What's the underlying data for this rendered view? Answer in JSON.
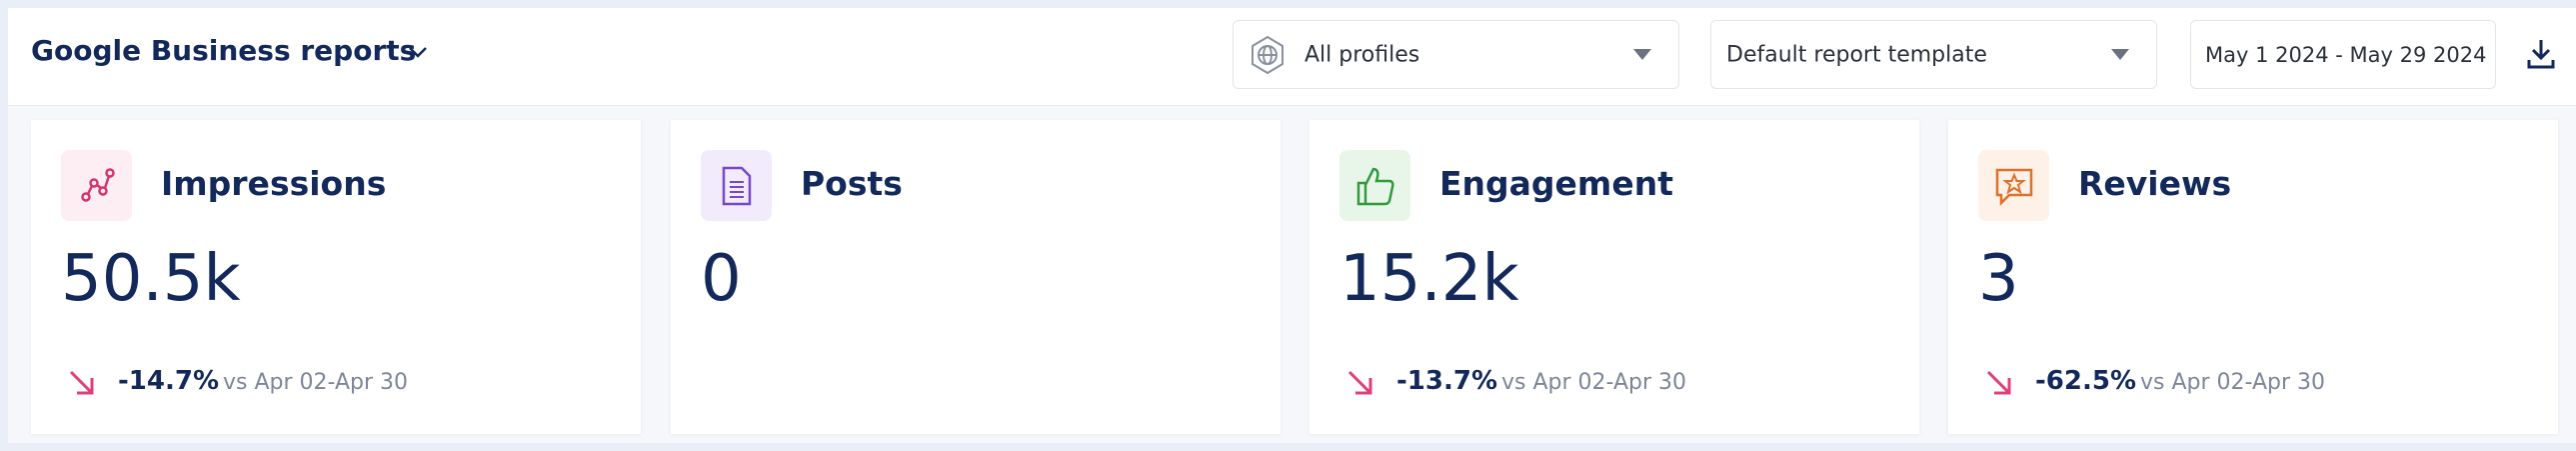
{
  "header": {
    "title": "Google Business reports"
  },
  "filters": {
    "profiles": "All profiles",
    "template": "Default report template",
    "date_range": "May 1 2024 - May 29 2024"
  },
  "cards": [
    {
      "title": "Impressions",
      "value": "50.5k",
      "change": "-14.7%",
      "comparison": "vs Apr 02-Apr 30"
    },
    {
      "title": "Posts",
      "value": "0"
    },
    {
      "title": "Engagement",
      "value": "15.2k",
      "change": "-13.7%",
      "comparison": "vs Apr 02-Apr 30"
    },
    {
      "title": "Reviews",
      "value": "3",
      "change": "-62.5%",
      "comparison": "vs Apr 02-Apr 30"
    }
  ]
}
